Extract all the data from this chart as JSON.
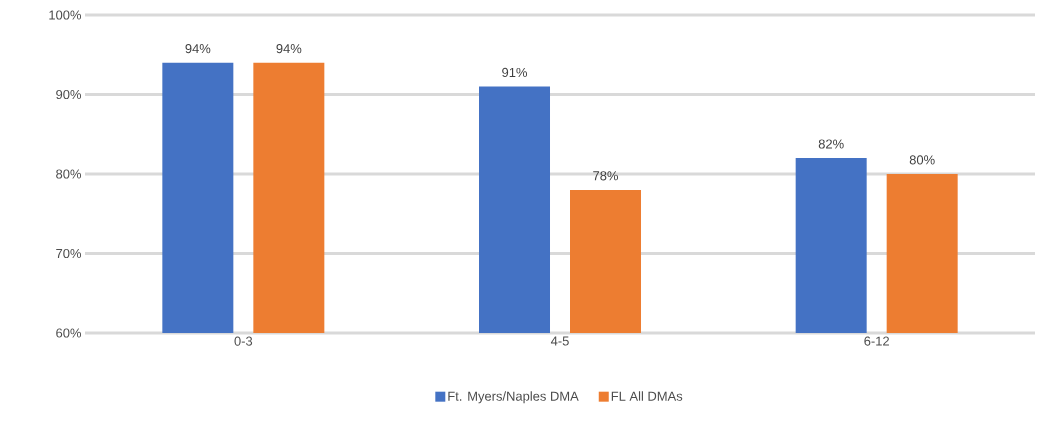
{
  "chart_data": {
    "type": "bar",
    "categories": [
      "0-3",
      "4-5",
      "6-12"
    ],
    "series": [
      {
        "name": "Ft. Myers/Naples DMA",
        "color": "#4472c4",
        "values": [
          94,
          91,
          82
        ],
        "value_labels": [
          "94%",
          "91%",
          "82%"
        ]
      },
      {
        "name": "FL All DMAs",
        "color": "#ed7d31",
        "values": [
          94,
          78,
          80
        ],
        "value_labels": [
          "94%",
          "78%",
          "80%"
        ]
      }
    ],
    "ylim": [
      60,
      100
    ],
    "yticks": [
      {
        "value": 60,
        "label": "60%"
      },
      {
        "value": 70,
        "label": "70%"
      },
      {
        "value": 80,
        "label": "80%"
      },
      {
        "value": 90,
        "label": "90%"
      },
      {
        "value": 100,
        "label": "100%"
      }
    ],
    "grid": "y",
    "legend": "bottom"
  }
}
